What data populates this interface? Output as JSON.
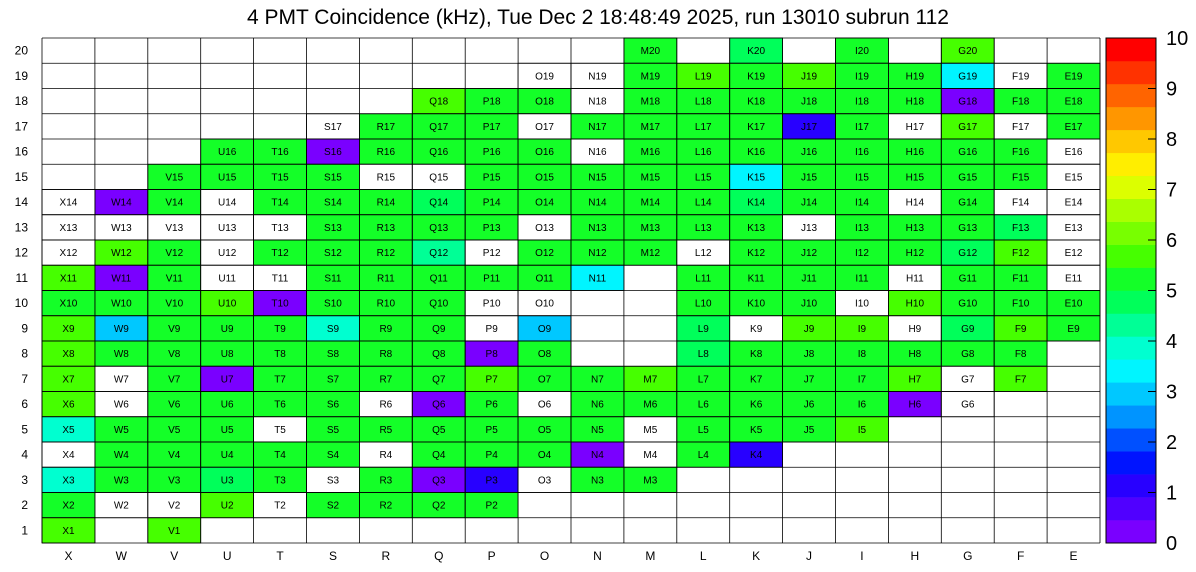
{
  "chart_data": {
    "type": "heatmap",
    "title": "4 PMT Coincidence (kHz), Tue Dec  2 18:48:49 2025, run 13010 subrun 112",
    "x_categories": [
      "X",
      "W",
      "V",
      "U",
      "T",
      "S",
      "R",
      "Q",
      "P",
      "O",
      "N",
      "M",
      "L",
      "K",
      "J",
      "I",
      "H",
      "G",
      "F",
      "E"
    ],
    "y_categories": [
      "1",
      "2",
      "3",
      "4",
      "5",
      "6",
      "7",
      "8",
      "9",
      "10",
      "11",
      "12",
      "13",
      "14",
      "15",
      "16",
      "17",
      "18",
      "19",
      "20"
    ],
    "zlim": [
      0,
      10
    ],
    "colorbar_ticks": [
      "0",
      "1",
      "2",
      "3",
      "4",
      "5",
      "6",
      "7",
      "8",
      "9",
      "10"
    ],
    "rows": [
      {
        "y": "20",
        "cells": [
          [
            11,
            5.4
          ],
          [
            13,
            4.6
          ],
          [
            15,
            5.4
          ],
          [
            17,
            5.6
          ]
        ]
      },
      {
        "y": "19",
        "cells": [
          [
            9,
            0
          ],
          [
            10,
            0
          ],
          [
            11,
            5.2
          ],
          [
            12,
            5.6
          ],
          [
            13,
            5.4
          ],
          [
            14,
            5.6
          ],
          [
            15,
            5.4
          ],
          [
            16,
            5.4
          ],
          [
            17,
            3.3
          ],
          [
            18,
            0
          ],
          [
            19,
            5.4
          ]
        ]
      },
      {
        "y": "18",
        "cells": [
          [
            7,
            5.6
          ],
          [
            8,
            5.4
          ],
          [
            9,
            5.0
          ],
          [
            10,
            0
          ],
          [
            11,
            5.4
          ],
          [
            12,
            5.4
          ],
          [
            13,
            5.4
          ],
          [
            14,
            5.0
          ],
          [
            15,
            5.4
          ],
          [
            16,
            5.4
          ],
          [
            17,
            0.1
          ],
          [
            18,
            5.4
          ],
          [
            19,
            5.4
          ]
        ]
      },
      {
        "y": "17",
        "cells": [
          [
            5,
            0
          ],
          [
            6,
            5.4
          ],
          [
            7,
            5.4
          ],
          [
            8,
            5.4
          ],
          [
            9,
            0
          ],
          [
            10,
            5.2
          ],
          [
            11,
            5.4
          ],
          [
            12,
            5.4
          ],
          [
            13,
            5.4
          ],
          [
            14,
            1.3
          ],
          [
            15,
            5.2
          ],
          [
            16,
            0
          ],
          [
            17,
            5.6
          ],
          [
            18,
            0
          ],
          [
            19,
            5.4
          ]
        ]
      },
      {
        "y": "16",
        "cells": [
          [
            3,
            5.4
          ],
          [
            4,
            5.4
          ],
          [
            5,
            0.1
          ],
          [
            6,
            5.4
          ],
          [
            7,
            5.4
          ],
          [
            8,
            5.4
          ],
          [
            9,
            5.0
          ],
          [
            10,
            0
          ],
          [
            11,
            5.4
          ],
          [
            12,
            5.4
          ],
          [
            13,
            5.4
          ],
          [
            14,
            5.4
          ],
          [
            15,
            5.4
          ],
          [
            16,
            5.4
          ],
          [
            17,
            5.4
          ],
          [
            18,
            5.4
          ],
          [
            19,
            0
          ]
        ]
      },
      {
        "y": "15",
        "cells": [
          [
            2,
            5.4
          ],
          [
            3,
            5.4
          ],
          [
            4,
            5.4
          ],
          [
            5,
            5.2
          ],
          [
            6,
            0
          ],
          [
            7,
            0
          ],
          [
            8,
            5.4
          ],
          [
            9,
            5.2
          ],
          [
            10,
            5.2
          ],
          [
            11,
            5.4
          ],
          [
            12,
            5.4
          ],
          [
            13,
            3.3
          ],
          [
            14,
            5.4
          ],
          [
            15,
            5.4
          ],
          [
            16,
            5.4
          ],
          [
            17,
            5.4
          ],
          [
            18,
            5.4
          ],
          [
            19,
            0
          ]
        ]
      },
      {
        "y": "14",
        "cells": [
          [
            0,
            0
          ],
          [
            1,
            0.1
          ],
          [
            2,
            5.4
          ],
          [
            3,
            0
          ],
          [
            4,
            5.4
          ],
          [
            5,
            5.4
          ],
          [
            6,
            5.4
          ],
          [
            7,
            4.8
          ],
          [
            8,
            5.4
          ],
          [
            9,
            5.4
          ],
          [
            10,
            5.4
          ],
          [
            11,
            5.4
          ],
          [
            12,
            5.2
          ],
          [
            13,
            4.6
          ],
          [
            14,
            5.4
          ],
          [
            15,
            5.4
          ],
          [
            16,
            0
          ],
          [
            17,
            5.4
          ],
          [
            18,
            0
          ],
          [
            19,
            0
          ]
        ]
      },
      {
        "y": "13",
        "cells": [
          [
            0,
            0
          ],
          [
            1,
            0
          ],
          [
            2,
            0
          ],
          [
            3,
            0
          ],
          [
            4,
            0
          ],
          [
            5,
            5.2
          ],
          [
            6,
            5.2
          ],
          [
            7,
            5.2
          ],
          [
            8,
            5.4
          ],
          [
            9,
            0
          ],
          [
            10,
            5.0
          ],
          [
            11,
            5.2
          ],
          [
            12,
            5.4
          ],
          [
            13,
            5.4
          ],
          [
            14,
            0
          ],
          [
            15,
            5.4
          ],
          [
            16,
            5.4
          ],
          [
            17,
            5.4
          ],
          [
            18,
            4.8
          ],
          [
            19,
            0
          ]
        ]
      },
      {
        "y": "12",
        "cells": [
          [
            0,
            0
          ],
          [
            1,
            5.6
          ],
          [
            2,
            5.4
          ],
          [
            3,
            0
          ],
          [
            4,
            5.4
          ],
          [
            5,
            5.4
          ],
          [
            6,
            5.4
          ],
          [
            7,
            4.2
          ],
          [
            8,
            0
          ],
          [
            9,
            5.4
          ],
          [
            10,
            5.4
          ],
          [
            11,
            5.4
          ],
          [
            12,
            0
          ],
          [
            13,
            5.4
          ],
          [
            14,
            5.4
          ],
          [
            15,
            5.4
          ],
          [
            16,
            5.4
          ],
          [
            17,
            4.6
          ],
          [
            18,
            5.6
          ],
          [
            19,
            0
          ]
        ]
      },
      {
        "y": "11",
        "cells": [
          [
            0,
            5.6
          ],
          [
            1,
            0.1
          ],
          [
            2,
            5.4
          ],
          [
            3,
            0
          ],
          [
            4,
            0
          ],
          [
            5,
            5.2
          ],
          [
            6,
            5.4
          ],
          [
            7,
            5.4
          ],
          [
            8,
            5.4
          ],
          [
            9,
            5.4
          ],
          [
            10,
            3.6
          ],
          [
            12,
            5.4
          ],
          [
            13,
            5.4
          ],
          [
            14,
            5.4
          ],
          [
            15,
            5.4
          ],
          [
            16,
            0
          ],
          [
            17,
            5.4
          ],
          [
            18,
            5.4
          ],
          [
            19,
            0
          ]
        ]
      },
      {
        "y": "10",
        "cells": [
          [
            0,
            5.4
          ],
          [
            1,
            5.4
          ],
          [
            2,
            5.4
          ],
          [
            3,
            5.6
          ],
          [
            4,
            0.1
          ],
          [
            5,
            5.4
          ],
          [
            6,
            5.2
          ],
          [
            7,
            5.4
          ],
          [
            8,
            0
          ],
          [
            9,
            0
          ],
          [
            12,
            5.4
          ],
          [
            13,
            5.4
          ],
          [
            14,
            5.4
          ],
          [
            15,
            0
          ],
          [
            16,
            5.6
          ],
          [
            17,
            5.4
          ],
          [
            18,
            5.4
          ],
          [
            19,
            5.4
          ]
        ]
      },
      {
        "y": "9",
        "cells": [
          [
            0,
            5.6
          ],
          [
            1,
            3.0
          ],
          [
            2,
            5.2
          ],
          [
            3,
            5.4
          ],
          [
            4,
            5.4
          ],
          [
            5,
            3.8
          ],
          [
            6,
            5.4
          ],
          [
            7,
            5.4
          ],
          [
            8,
            0
          ],
          [
            9,
            3.0
          ],
          [
            12,
            4.8
          ],
          [
            13,
            0
          ],
          [
            14,
            5.6
          ],
          [
            15,
            5.6
          ],
          [
            16,
            0
          ],
          [
            17,
            4.6
          ],
          [
            18,
            5.6
          ],
          [
            19,
            5.4
          ]
        ]
      },
      {
        "y": "8",
        "cells": [
          [
            0,
            5.6
          ],
          [
            1,
            5.4
          ],
          [
            2,
            5.4
          ],
          [
            3,
            5.4
          ],
          [
            4,
            5.4
          ],
          [
            5,
            5.4
          ],
          [
            6,
            5.4
          ],
          [
            7,
            5.4
          ],
          [
            8,
            0.1
          ],
          [
            9,
            5.4
          ],
          [
            12,
            4.6
          ],
          [
            13,
            5.4
          ],
          [
            14,
            5.4
          ],
          [
            15,
            5.4
          ],
          [
            16,
            5.4
          ],
          [
            17,
            5.2
          ],
          [
            18,
            5.2
          ]
        ]
      },
      {
        "y": "7",
        "cells": [
          [
            0,
            5.6
          ],
          [
            1,
            0
          ],
          [
            2,
            5.4
          ],
          [
            3,
            0.1
          ],
          [
            4,
            5.4
          ],
          [
            5,
            5.4
          ],
          [
            6,
            5.4
          ],
          [
            7,
            5.4
          ],
          [
            8,
            5.6
          ],
          [
            9,
            5.4
          ],
          [
            10,
            5.4
          ],
          [
            11,
            5.6
          ],
          [
            12,
            5.4
          ],
          [
            13,
            5.4
          ],
          [
            14,
            5.4
          ],
          [
            15,
            5.4
          ],
          [
            16,
            5.6
          ],
          [
            17,
            0
          ],
          [
            18,
            5.6
          ]
        ]
      },
      {
        "y": "6",
        "cells": [
          [
            0,
            5.6
          ],
          [
            1,
            0
          ],
          [
            2,
            5.2
          ],
          [
            3,
            5.4
          ],
          [
            4,
            5.4
          ],
          [
            5,
            5.4
          ],
          [
            6,
            0
          ],
          [
            7,
            0.1
          ],
          [
            8,
            5.4
          ],
          [
            9,
            0
          ],
          [
            10,
            5.4
          ],
          [
            11,
            5.4
          ],
          [
            12,
            5.4
          ],
          [
            13,
            5.4
          ],
          [
            14,
            5.4
          ],
          [
            15,
            5.4
          ],
          [
            16,
            0.1
          ],
          [
            17,
            0
          ]
        ]
      },
      {
        "y": "5",
        "cells": [
          [
            0,
            3.8
          ],
          [
            1,
            5.4
          ],
          [
            2,
            5.4
          ],
          [
            3,
            5.4
          ],
          [
            4,
            0
          ],
          [
            5,
            5.4
          ],
          [
            6,
            5.4
          ],
          [
            7,
            5.4
          ],
          [
            8,
            5.4
          ],
          [
            9,
            5.4
          ],
          [
            10,
            5.4
          ],
          [
            11,
            0
          ],
          [
            12,
            5.4
          ],
          [
            13,
            5.4
          ],
          [
            14,
            5.4
          ],
          [
            15,
            5.6
          ]
        ]
      },
      {
        "y": "4",
        "cells": [
          [
            0,
            0
          ],
          [
            1,
            5.4
          ],
          [
            2,
            5.4
          ],
          [
            3,
            5.4
          ],
          [
            4,
            5.4
          ],
          [
            5,
            5.4
          ],
          [
            6,
            0
          ],
          [
            7,
            5.4
          ],
          [
            8,
            5.4
          ],
          [
            9,
            5.4
          ],
          [
            10,
            0.1
          ],
          [
            11,
            0
          ],
          [
            12,
            5.4
          ],
          [
            13,
            1.3
          ]
        ]
      },
      {
        "y": "3",
        "cells": [
          [
            0,
            3.8
          ],
          [
            1,
            5.4
          ],
          [
            2,
            5.4
          ],
          [
            3,
            4.6
          ],
          [
            4,
            5.4
          ],
          [
            5,
            0
          ],
          [
            6,
            5.4
          ],
          [
            7,
            0.1
          ],
          [
            8,
            1.3
          ],
          [
            9,
            0
          ],
          [
            10,
            5.4
          ],
          [
            11,
            5.4
          ]
        ]
      },
      {
        "y": "2",
        "cells": [
          [
            0,
            5.4
          ],
          [
            1,
            0
          ],
          [
            2,
            0
          ],
          [
            3,
            5.6
          ],
          [
            4,
            0
          ],
          [
            5,
            5.0
          ],
          [
            6,
            5.4
          ],
          [
            7,
            5.4
          ],
          [
            8,
            5.4
          ]
        ]
      },
      {
        "y": "1",
        "cells": [
          [
            0,
            5.6
          ],
          [
            2,
            5.6
          ]
        ]
      }
    ]
  },
  "palette": [
    "#7a00ff",
    "#5000ff",
    "#2800ff",
    "#0014ff",
    "#0050ff",
    "#0094ff",
    "#00c8ff",
    "#00f5ff",
    "#00ffd0",
    "#00ff96",
    "#00ff5a",
    "#14ff28",
    "#46ff00",
    "#78ff00",
    "#aaff00",
    "#dcff00",
    "#ffee00",
    "#ffc800",
    "#ff9600",
    "#ff6400",
    "#ff3200",
    "#ff0000"
  ]
}
